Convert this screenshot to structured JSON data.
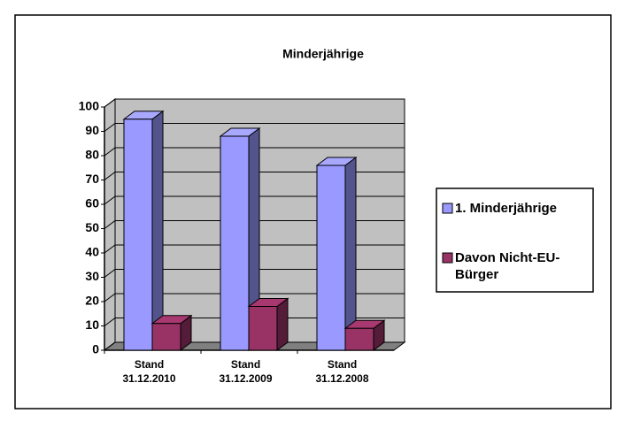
{
  "chart_data": {
    "type": "bar",
    "title": "Minderjährige",
    "categories": [
      "Stand 31.12.2010",
      "Stand 31.12.2009",
      "Stand 31.12.2008"
    ],
    "series": [
      {
        "name": "1. Minderjährige",
        "color": "#9999ff",
        "values": [
          95,
          88,
          76
        ]
      },
      {
        "name": "Davon Nicht-EU-Bürger",
        "color": "#993366",
        "values": [
          11,
          18,
          9
        ]
      }
    ],
    "ylim": [
      0,
      100
    ],
    "yticks": [
      0,
      10,
      20,
      30,
      40,
      50,
      60,
      70,
      80,
      90,
      100
    ],
    "grid": true,
    "legend": "right"
  }
}
